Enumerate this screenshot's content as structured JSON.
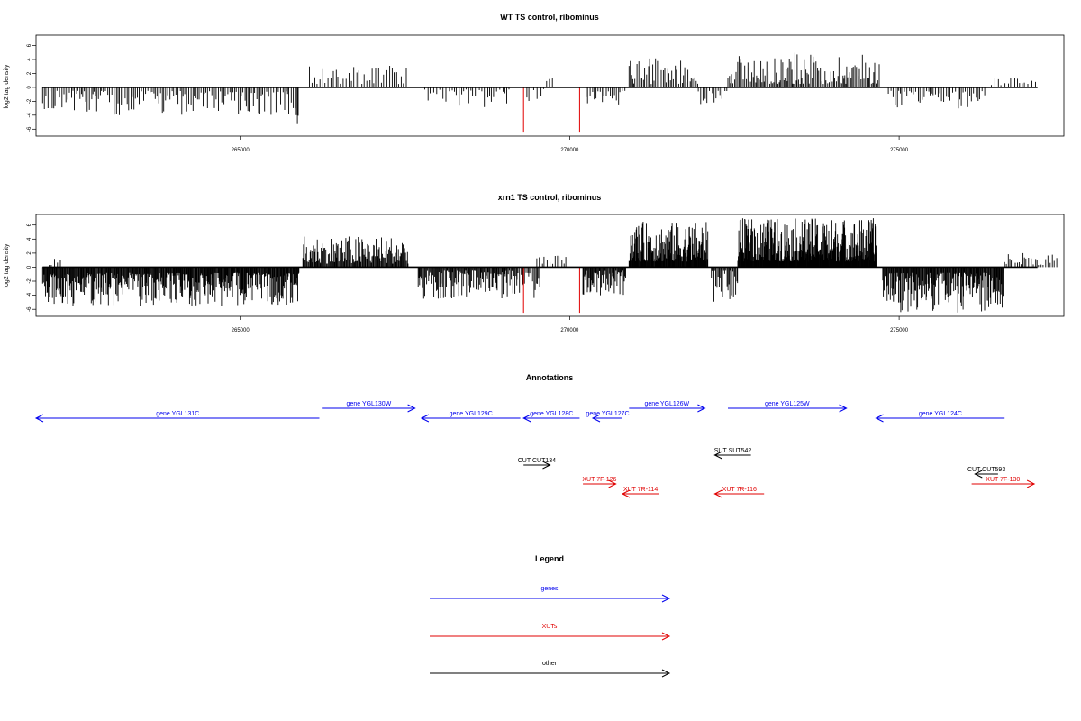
{
  "chart_data": [
    {
      "type": "bar",
      "title": "WT TS control, ribominus",
      "ylabel": "log2 tag density",
      "xlabel": "",
      "xlim": [
        261900,
        277500
      ],
      "ylim": [
        -7,
        7.5
      ],
      "yticks": [
        -6,
        -4,
        -2,
        0,
        2,
        4,
        6
      ],
      "xticks": [
        265000,
        270000,
        275000
      ],
      "grid": false,
      "bar_color": "#000000",
      "highlight_color": "#e00000",
      "highlight_bars": [
        {
          "x": 269300,
          "y": -6.5
        },
        {
          "x": 270150,
          "y": -6.5
        }
      ],
      "segments": [
        {
          "x0": 262000,
          "x1": 265850,
          "sign": -1,
          "min": 0.5,
          "max": 4.0,
          "spacing": 28
        },
        {
          "x0": 265850,
          "x1": 265900,
          "sign": -1,
          "min": 4.0,
          "max": 5.5,
          "spacing": 20
        },
        {
          "x0": 266050,
          "x1": 267550,
          "sign": 1,
          "min": 0.5,
          "max": 3.2,
          "spacing": 35
        },
        {
          "x0": 267800,
          "x1": 269100,
          "sign": -1,
          "min": 0.3,
          "max": 3.0,
          "spacing": 40
        },
        {
          "x0": 269350,
          "x1": 269650,
          "sign": -1,
          "min": 0.2,
          "max": 2.0,
          "spacing": 45
        },
        {
          "x0": 269650,
          "x1": 269750,
          "sign": 1,
          "min": 0.5,
          "max": 1.5,
          "spacing": 40
        },
        {
          "x0": 270250,
          "x1": 270850,
          "sign": -1,
          "min": 0.5,
          "max": 2.5,
          "spacing": 30
        },
        {
          "x0": 270900,
          "x1": 271950,
          "sign": 1,
          "min": 0.5,
          "max": 4.2,
          "spacing": 25
        },
        {
          "x0": 271950,
          "x1": 272400,
          "sign": -1,
          "min": 0.5,
          "max": 2.5,
          "spacing": 35
        },
        {
          "x0": 272400,
          "x1": 274700,
          "sign": 1,
          "min": 0.5,
          "max": 5.0,
          "spacing": 20
        },
        {
          "x0": 274800,
          "x1": 276300,
          "sign": -1,
          "min": 0.5,
          "max": 3.2,
          "spacing": 32
        },
        {
          "x0": 276400,
          "x1": 277100,
          "sign": 1,
          "min": 0.3,
          "max": 1.6,
          "spacing": 45
        }
      ]
    },
    {
      "type": "bar",
      "title": "xrn1 TS control, ribominus",
      "ylabel": "log2 tag density",
      "xlabel": "",
      "xlim": [
        261900,
        277500
      ],
      "ylim": [
        -7,
        7.5
      ],
      "yticks": [
        -6,
        -4,
        -2,
        0,
        2,
        4,
        6
      ],
      "xticks": [
        265000,
        270000,
        275000
      ],
      "grid": false,
      "bar_color": "#000000",
      "highlight_color": "#e00000",
      "highlight_bars": [
        {
          "x": 269300,
          "y": -6.5
        },
        {
          "x": 270150,
          "y": -6.5
        }
      ],
      "segments": [
        {
          "x0": 262000,
          "x1": 265900,
          "sign": -1,
          "min": 0.8,
          "max": 5.5,
          "spacing": 10
        },
        {
          "x0": 262100,
          "x1": 262300,
          "sign": 1,
          "min": 0.3,
          "max": 1.2,
          "spacing": 50
        },
        {
          "x0": 265950,
          "x1": 267550,
          "sign": 1,
          "min": 0.5,
          "max": 4.5,
          "spacing": 12
        },
        {
          "x0": 267700,
          "x1": 269200,
          "sign": -1,
          "min": 0.5,
          "max": 4.5,
          "spacing": 12
        },
        {
          "x0": 269200,
          "x1": 269550,
          "sign": -1,
          "min": 0.5,
          "max": 4.5,
          "spacing": 20
        },
        {
          "x0": 269500,
          "x1": 269950,
          "sign": 1,
          "min": 0.3,
          "max": 1.8,
          "spacing": 35
        },
        {
          "x0": 270200,
          "x1": 270850,
          "sign": -1,
          "min": 0.5,
          "max": 4.0,
          "spacing": 12
        },
        {
          "x0": 270900,
          "x1": 272100,
          "sign": 1,
          "min": 0.8,
          "max": 6.5,
          "spacing": 7
        },
        {
          "x0": 272150,
          "x1": 272550,
          "sign": -1,
          "min": 0.5,
          "max": 5.0,
          "spacing": 15
        },
        {
          "x0": 272550,
          "x1": 274650,
          "sign": 1,
          "min": 0.8,
          "max": 7.0,
          "spacing": 6
        },
        {
          "x0": 274750,
          "x1": 276600,
          "sign": -1,
          "min": 0.8,
          "max": 6.5,
          "spacing": 10
        },
        {
          "x0": 276600,
          "x1": 277400,
          "sign": 1,
          "min": 0.3,
          "max": 2.2,
          "spacing": 30
        }
      ]
    }
  ],
  "annotations": {
    "title": "Annotations",
    "xlim": [
      261900,
      277500
    ],
    "features": [
      {
        "label": "gene YGL131C",
        "start": 261900,
        "end": 266200,
        "strand": "-",
        "row": 1,
        "color": "#0000ee"
      },
      {
        "label": "gene YGL130W",
        "start": 266250,
        "end": 267650,
        "strand": "+",
        "row": 0,
        "color": "#0000ee"
      },
      {
        "label": "gene YGL129C",
        "start": 267750,
        "end": 269250,
        "strand": "-",
        "row": 1,
        "color": "#0000ee"
      },
      {
        "label": "gene YGL128C",
        "start": 269300,
        "end": 270150,
        "strand": "-",
        "row": 1,
        "color": "#0000ee"
      },
      {
        "label": "gene YGL127C",
        "start": 270350,
        "end": 270800,
        "strand": "-",
        "row": 1,
        "color": "#0000ee"
      },
      {
        "label": "gene YGL126W",
        "start": 270900,
        "end": 272050,
        "strand": "+",
        "row": 0,
        "color": "#0000ee"
      },
      {
        "label": "gene YGL125W",
        "start": 272400,
        "end": 274200,
        "strand": "+",
        "row": 0,
        "color": "#0000ee"
      },
      {
        "label": "gene YGL124C",
        "start": 274650,
        "end": 276600,
        "strand": "-",
        "row": 1,
        "color": "#0000ee"
      },
      {
        "label": "CUT CUT134",
        "start": 269300,
        "end": 269700,
        "strand": "+",
        "row": 5,
        "color": "#000000"
      },
      {
        "label": "SUT SUT542",
        "start": 272200,
        "end": 272750,
        "strand": "-",
        "row": 4,
        "color": "#000000"
      },
      {
        "label": "CUT CUT593",
        "start": 276150,
        "end": 276500,
        "strand": "-",
        "row": 6,
        "color": "#000000"
      },
      {
        "label": "XUT 7F-126",
        "start": 270200,
        "end": 270700,
        "strand": "+",
        "row": 7,
        "color": "#e00000"
      },
      {
        "label": "XUT 7R-114",
        "start": 270800,
        "end": 271350,
        "strand": "-",
        "row": 8,
        "color": "#e00000"
      },
      {
        "label": "XUT 7R-116",
        "start": 272200,
        "end": 272950,
        "strand": "-",
        "row": 8,
        "color": "#e00000"
      },
      {
        "label": "XUT 7F-130",
        "start": 276100,
        "end": 277050,
        "strand": "+",
        "row": 7,
        "color": "#e00000"
      }
    ]
  },
  "legend": {
    "title": "Legend",
    "items": [
      {
        "label": "genes",
        "color": "#0000ee"
      },
      {
        "label": "XUTs",
        "color": "#e00000"
      },
      {
        "label": "other",
        "color": "#000000"
      }
    ]
  }
}
